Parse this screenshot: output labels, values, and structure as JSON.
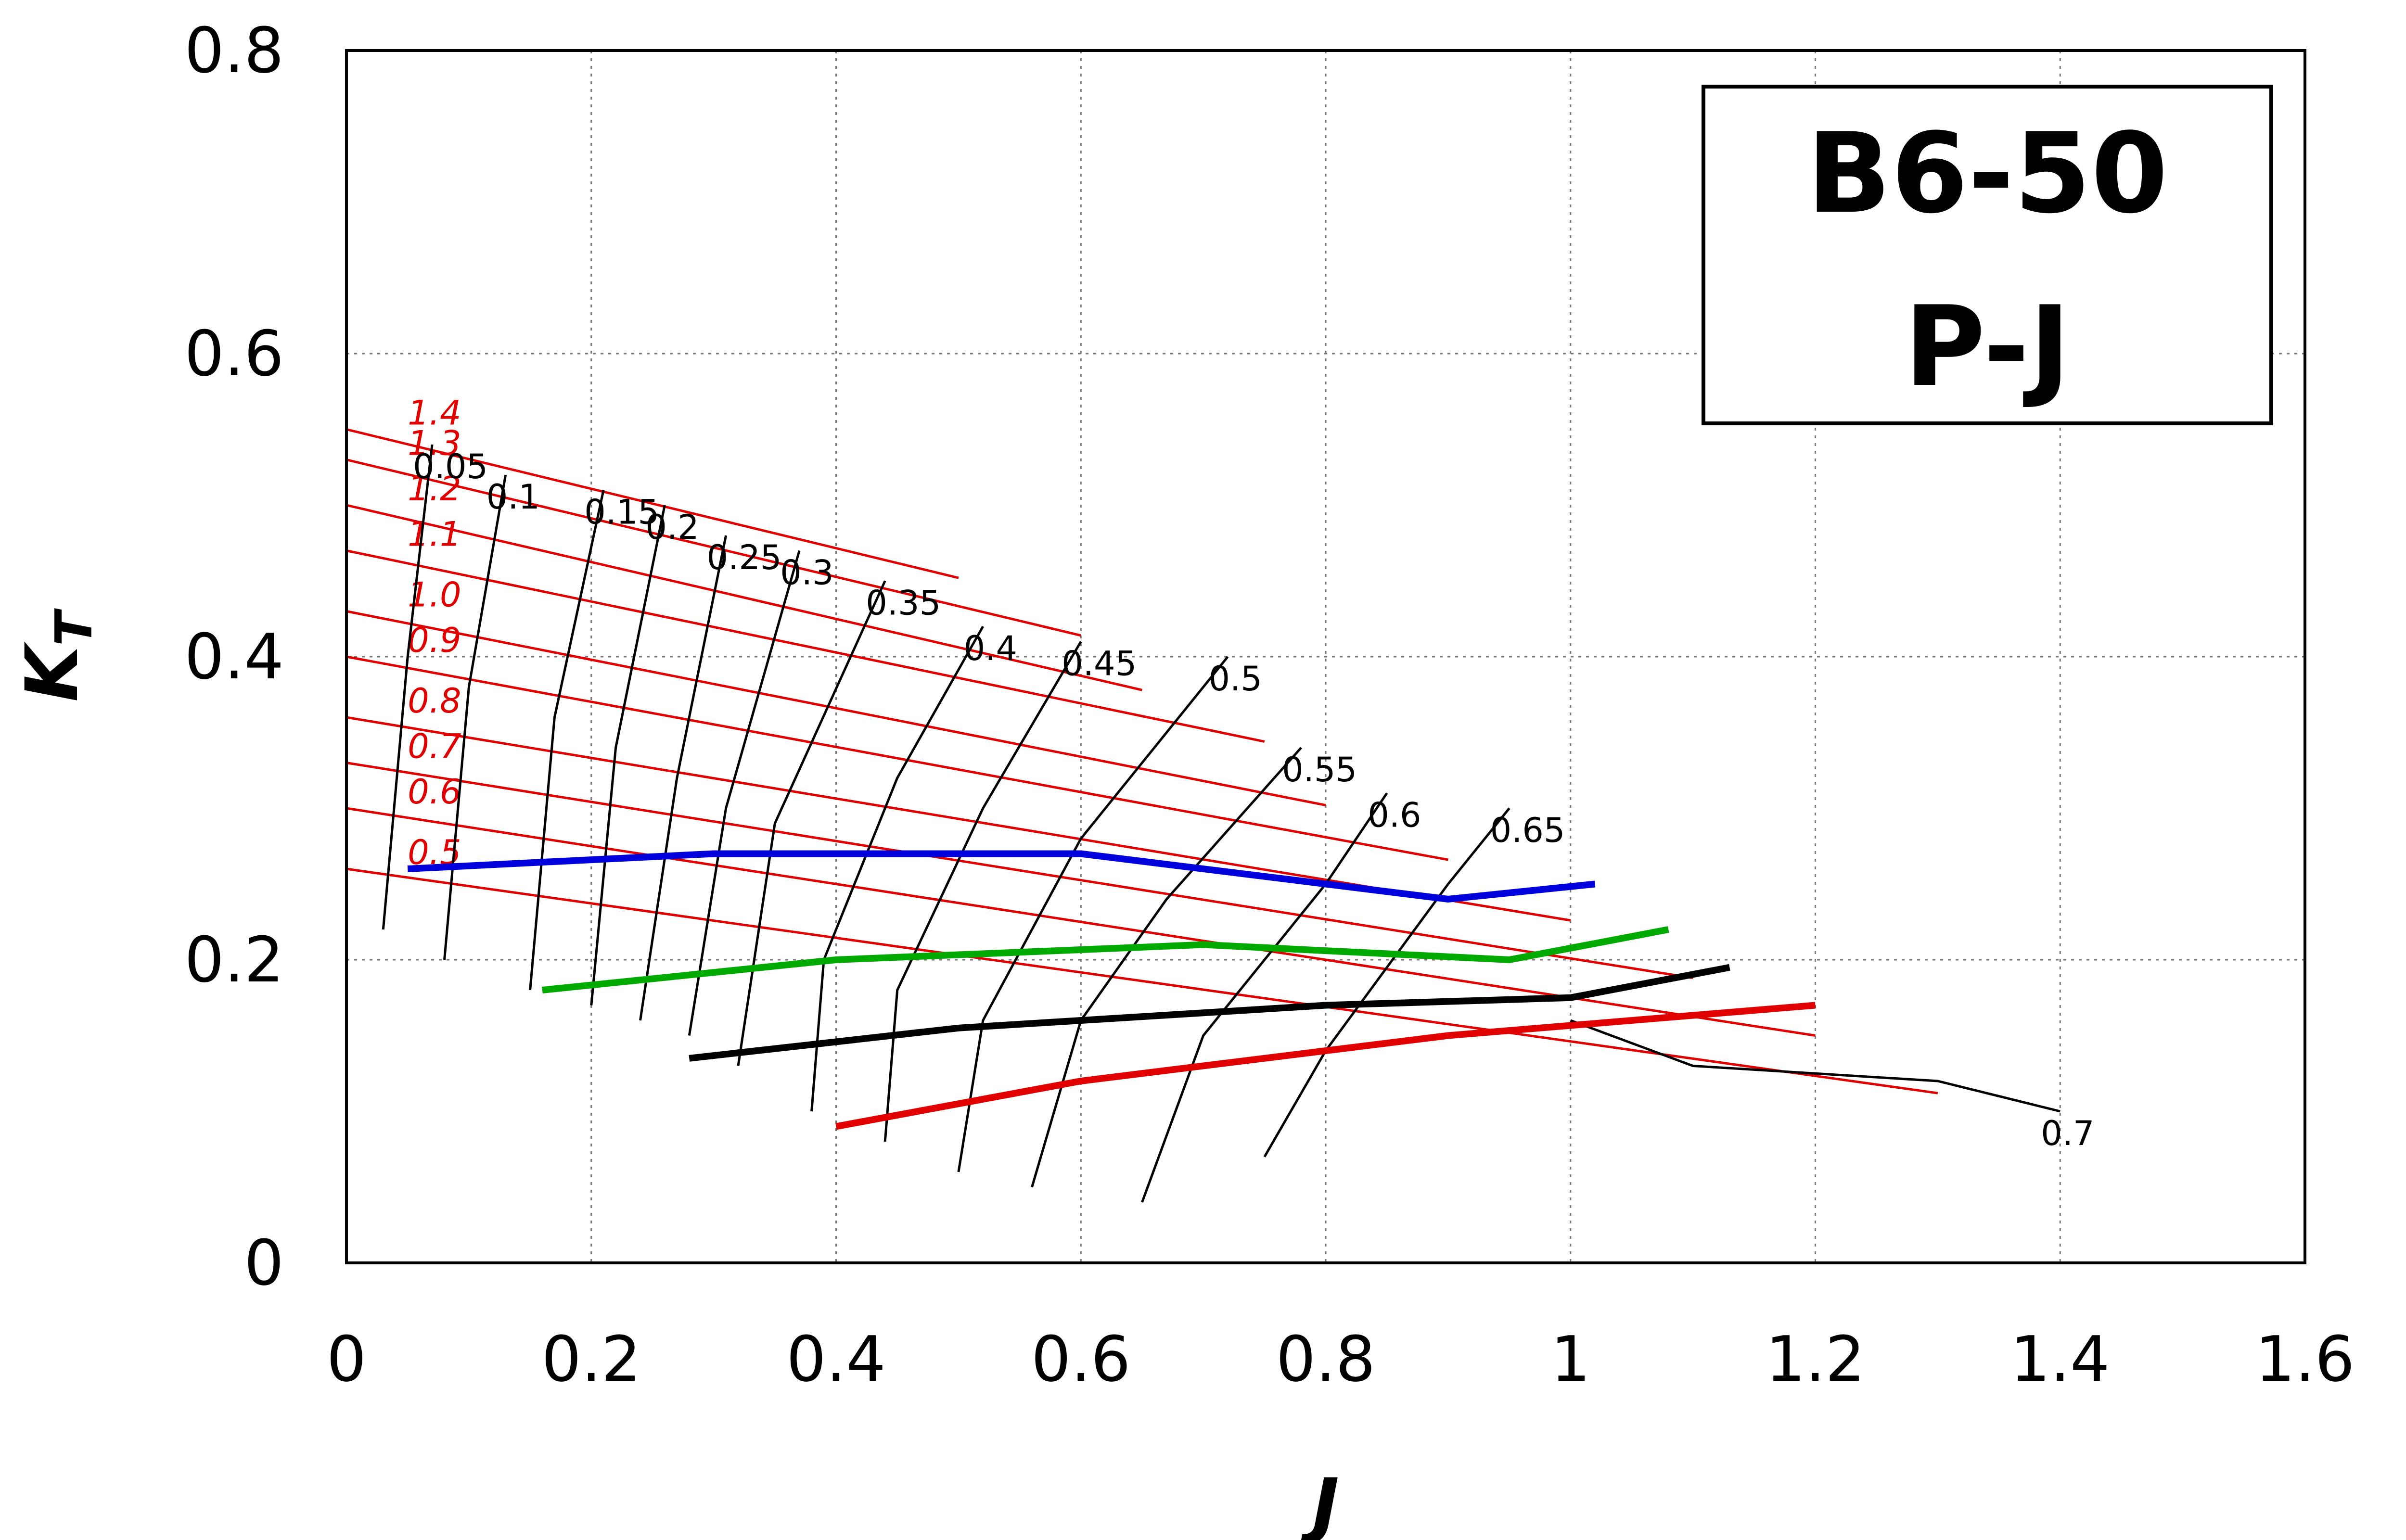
{
  "chart_data": {
    "type": "line",
    "title": "",
    "xlabel": "J",
    "ylabel": "K",
    "ylabel_subscript": "T",
    "xlim": [
      0,
      1.6
    ],
    "ylim": [
      0,
      0.8
    ],
    "x_ticks": [
      "0",
      "0.2",
      "0.4",
      "0.6",
      "0.8",
      "1",
      "1.2",
      "1.4",
      "1.6"
    ],
    "y_ticks": [
      "0",
      "0.2",
      "0.4",
      "0.6",
      "0.8"
    ],
    "grid": true,
    "legend_box": {
      "line1": "B6-50",
      "line2": "P-J"
    },
    "colors": {
      "pitch": "#e00000",
      "efficiency": "#000000",
      "blue_family": "#0000dd",
      "green_family": "#00aa00"
    },
    "pitch_labels": [
      "1.4",
      "1.3",
      "1.2",
      "1.1",
      "1.0",
      "0.9",
      "0.8",
      "0.7",
      "0.6",
      "0.5"
    ],
    "pitch_ratio_lines": [
      {
        "name": "1.4",
        "x": [
          0,
          0.5
        ],
        "y": [
          0.55,
          0.452
        ]
      },
      {
        "name": "1.3",
        "x": [
          0,
          0.6
        ],
        "y": [
          0.53,
          0.414
        ]
      },
      {
        "name": "1.2",
        "x": [
          0,
          0.65
        ],
        "y": [
          0.5,
          0.378
        ]
      },
      {
        "name": "1.1",
        "x": [
          0,
          0.75
        ],
        "y": [
          0.47,
          0.344
        ]
      },
      {
        "name": "1.0",
        "x": [
          0,
          0.8
        ],
        "y": [
          0.43,
          0.302
        ]
      },
      {
        "name": "0.9",
        "x": [
          0,
          0.9
        ],
        "y": [
          0.4,
          0.266
        ]
      },
      {
        "name": "0.8",
        "x": [
          0,
          1.0
        ],
        "y": [
          0.36,
          0.226
        ]
      },
      {
        "name": "0.7",
        "x": [
          0,
          1.1
        ],
        "y": [
          0.33,
          0.188
        ]
      },
      {
        "name": "0.6",
        "x": [
          0,
          1.2
        ],
        "y": [
          0.3,
          0.15
        ]
      },
      {
        "name": "0.5",
        "x": [
          0,
          1.3
        ],
        "y": [
          0.26,
          0.112
        ]
      }
    ],
    "efficiency_lines": [
      {
        "name": "0.05",
        "x": [
          0.03,
          0.05,
          0.07
        ],
        "y": [
          0.22,
          0.4,
          0.54
        ]
      },
      {
        "name": "0.1",
        "x": [
          0.08,
          0.1,
          0.13
        ],
        "y": [
          0.2,
          0.38,
          0.52
        ]
      },
      {
        "name": "0.15",
        "x": [
          0.15,
          0.17,
          0.21
        ],
        "y": [
          0.18,
          0.36,
          0.51
        ]
      },
      {
        "name": "0.2",
        "x": [
          0.2,
          0.22,
          0.26
        ],
        "y": [
          0.17,
          0.34,
          0.5
        ]
      },
      {
        "name": "0.25",
        "x": [
          0.24,
          0.27,
          0.31
        ],
        "y": [
          0.16,
          0.32,
          0.48
        ]
      },
      {
        "name": "0.3",
        "x": [
          0.28,
          0.31,
          0.37
        ],
        "y": [
          0.15,
          0.3,
          0.47
        ]
      },
      {
        "name": "0.35",
        "x": [
          0.32,
          0.35,
          0.44
        ],
        "y": [
          0.13,
          0.29,
          0.45
        ]
      },
      {
        "name": "0.4",
        "x": [
          0.38,
          0.39,
          0.45,
          0.52
        ],
        "y": [
          0.1,
          0.2,
          0.32,
          0.42
        ]
      },
      {
        "name": "0.45",
        "x": [
          0.44,
          0.45,
          0.52,
          0.6
        ],
        "y": [
          0.08,
          0.18,
          0.3,
          0.41
        ]
      },
      {
        "name": "0.5",
        "x": [
          0.5,
          0.52,
          0.6,
          0.72
        ],
        "y": [
          0.06,
          0.16,
          0.28,
          0.4
        ]
      },
      {
        "name": "0.55",
        "x": [
          0.56,
          0.6,
          0.67,
          0.78
        ],
        "y": [
          0.05,
          0.16,
          0.24,
          0.34
        ]
      },
      {
        "name": "0.6",
        "x": [
          0.65,
          0.7,
          0.8,
          0.85
        ],
        "y": [
          0.04,
          0.15,
          0.25,
          0.31
        ]
      },
      {
        "name": "0.65",
        "x": [
          0.75,
          0.8,
          0.9,
          0.95
        ],
        "y": [
          0.07,
          0.14,
          0.25,
          0.3
        ]
      },
      {
        "name": "0.7",
        "x": [
          1.0,
          1.1,
          1.3,
          1.4
        ],
        "y": [
          0.16,
          0.13,
          0.12,
          0.1
        ]
      }
    ],
    "optimum_curves": [
      {
        "name": "blue",
        "x": [
          0.05,
          0.3,
          0.6,
          0.9,
          1.02
        ],
        "y": [
          0.26,
          0.27,
          0.27,
          0.24,
          0.25
        ]
      },
      {
        "name": "green",
        "x": [
          0.16,
          0.4,
          0.7,
          0.95,
          1.08
        ],
        "y": [
          0.18,
          0.2,
          0.21,
          0.2,
          0.22
        ]
      },
      {
        "name": "black",
        "x": [
          0.28,
          0.5,
          0.8,
          1.0,
          1.13
        ],
        "y": [
          0.135,
          0.155,
          0.17,
          0.175,
          0.195
        ]
      },
      {
        "name": "red",
        "x": [
          0.4,
          0.6,
          0.9,
          1.2
        ],
        "y": [
          0.09,
          0.12,
          0.15,
          0.17
        ]
      }
    ]
  }
}
